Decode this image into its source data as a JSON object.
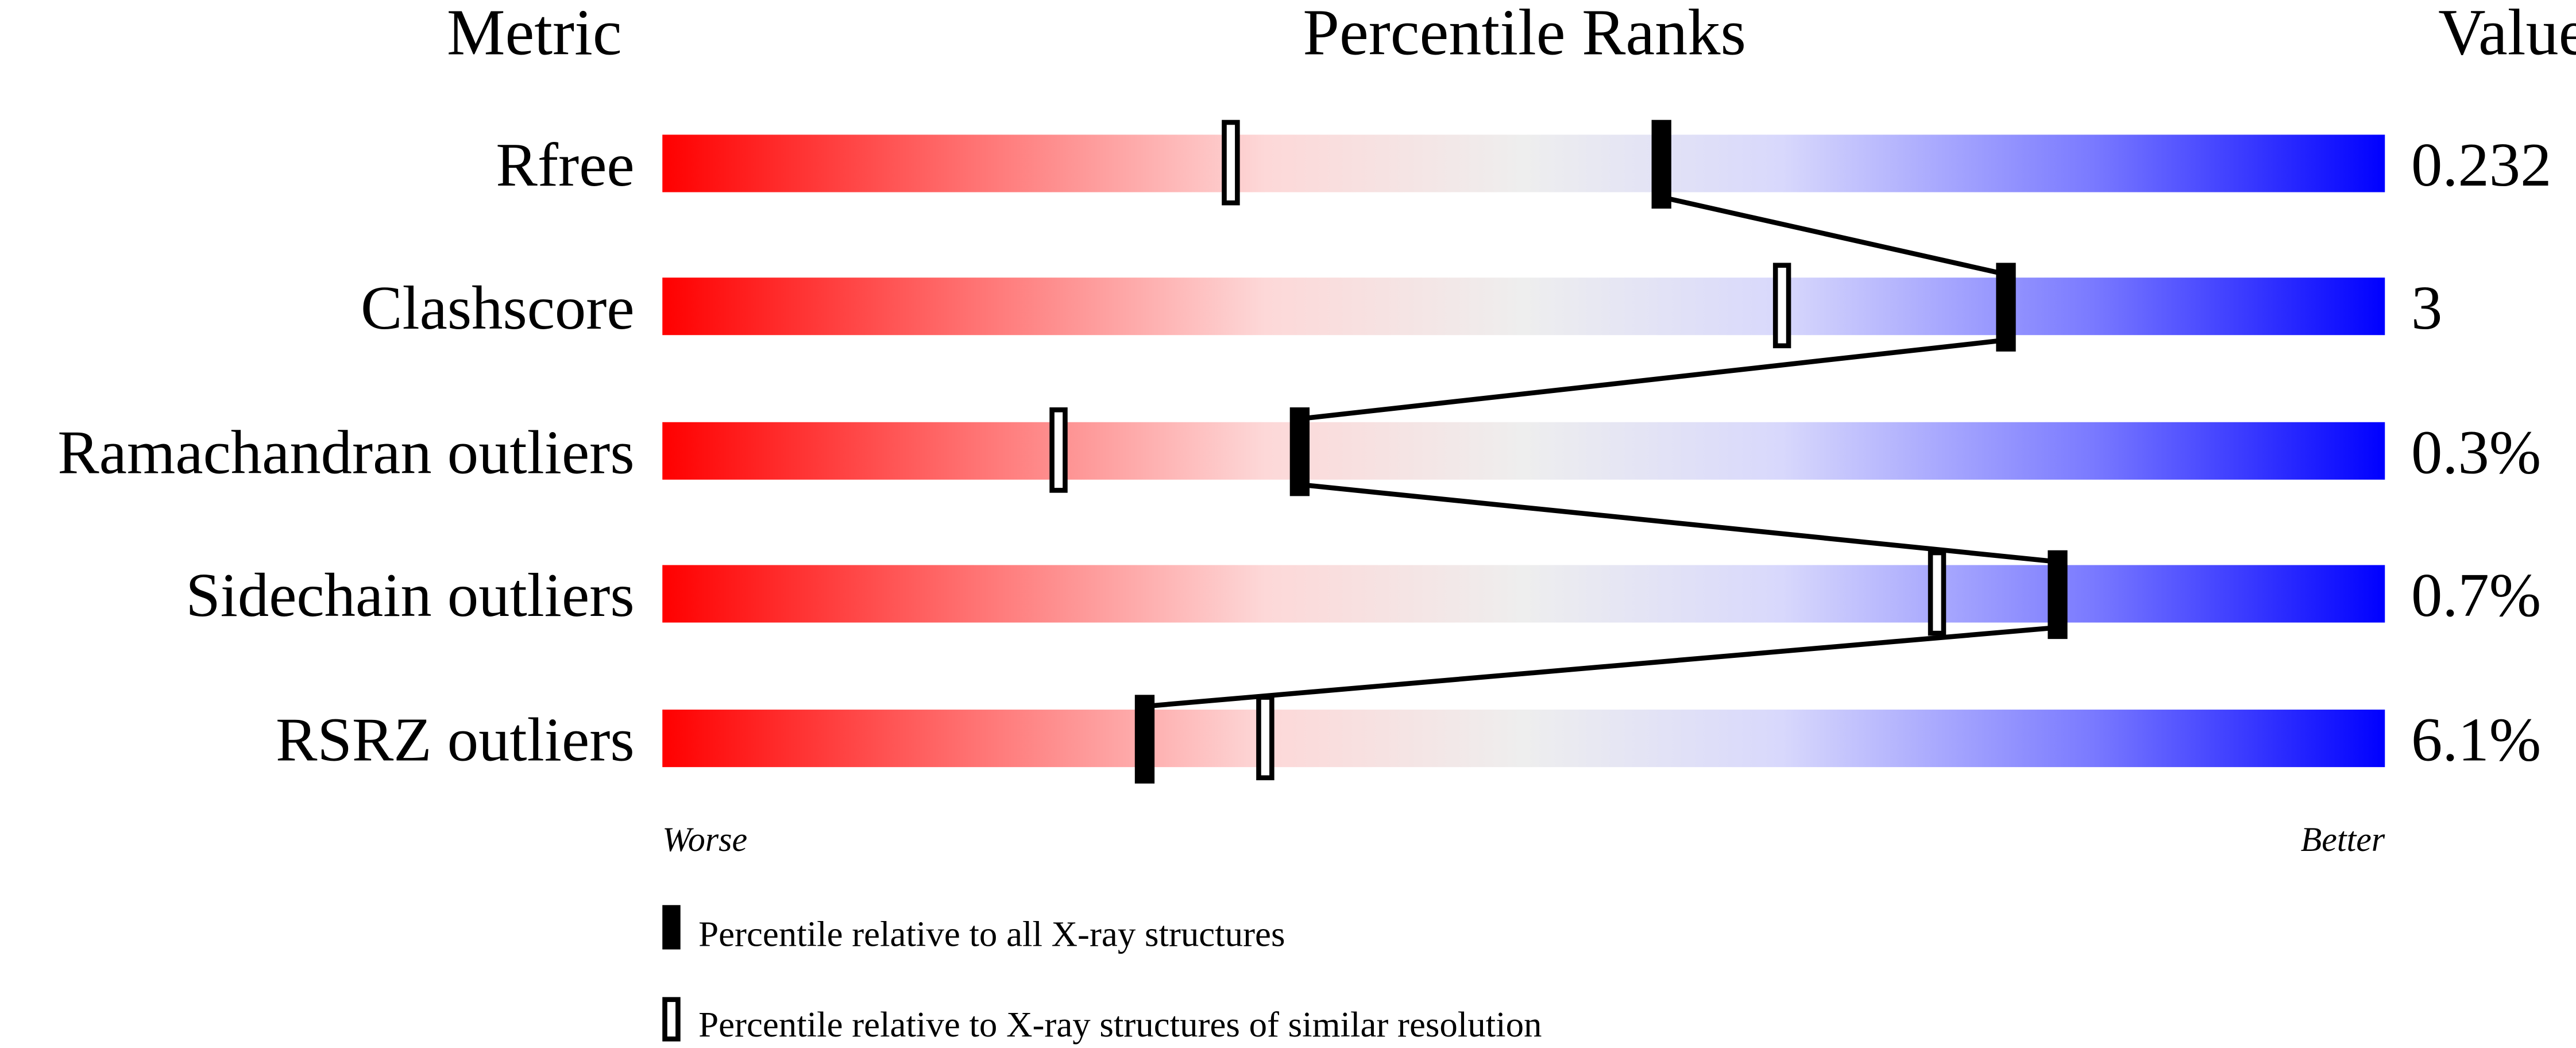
{
  "chart_data": {
    "type": "percentile-slider",
    "headers": {
      "metric": "Metric",
      "ranks": "Percentile Ranks",
      "value": "Value"
    },
    "xlim": [
      0,
      100
    ],
    "scale_labels": {
      "left": "Worse",
      "right": "Better"
    },
    "rows": [
      {
        "metric": "Rfree",
        "value": "0.232",
        "percentile_all": 58,
        "percentile_similar": 33
      },
      {
        "metric": "Clashscore",
        "value": "3",
        "percentile_all": 78,
        "percentile_similar": 65
      },
      {
        "metric": "Ramachandran outliers",
        "value": "0.3%",
        "percentile_all": 37,
        "percentile_similar": 23
      },
      {
        "metric": "Sidechain outliers",
        "value": "0.7%",
        "percentile_all": 81,
        "percentile_similar": 74
      },
      {
        "metric": "RSRZ outliers",
        "value": "6.1%",
        "percentile_all": 28,
        "percentile_similar": 35
      }
    ],
    "legend": {
      "filled": "Percentile relative to all X-ray structures",
      "open": "Percentile relative to X-ray structures of similar resolution"
    },
    "colors": {
      "worse": "#ff0000",
      "middle": "#eeeeee",
      "better": "#0000ff",
      "marker": "#000000"
    }
  }
}
